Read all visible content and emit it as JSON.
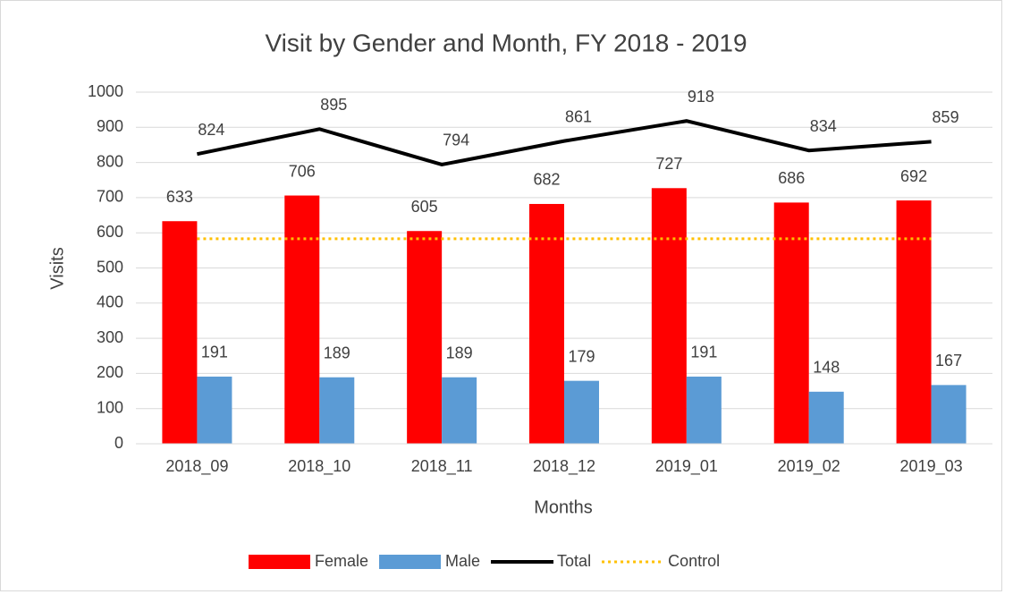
{
  "chart_data": {
    "type": "bar",
    "title": "Visit by Gender and Month, FY 2018 - 2019",
    "x_label": "Months",
    "y_label": "Visits",
    "categories": [
      "2018_09",
      "2018_10",
      "2018_11",
      "2018_12",
      "2019_01",
      "2019_02",
      "2019_03"
    ],
    "series": [
      {
        "name": "Female",
        "kind": "bar",
        "color": "#ff0000",
        "values": [
          633,
          706,
          605,
          682,
          727,
          686,
          692
        ],
        "labels": true
      },
      {
        "name": "Male",
        "kind": "bar",
        "color": "#5b9bd5",
        "values": [
          191,
          189,
          189,
          179,
          191,
          148,
          167
        ],
        "labels": true
      },
      {
        "name": "Total",
        "kind": "line",
        "color": "#000000",
        "values": [
          824,
          895,
          794,
          861,
          918,
          834,
          859
        ],
        "labels": true
      },
      {
        "name": "Control",
        "kind": "line",
        "dotted": true,
        "color": "#ffc000",
        "values": [
          583,
          583,
          583,
          583,
          583,
          583,
          583
        ],
        "labels": false
      }
    ],
    "ylim": [
      0,
      1000
    ],
    "yticks": [
      0,
      100,
      200,
      300,
      400,
      500,
      600,
      700,
      800,
      900,
      1000
    ],
    "grid": true,
    "legend": "bottom"
  }
}
